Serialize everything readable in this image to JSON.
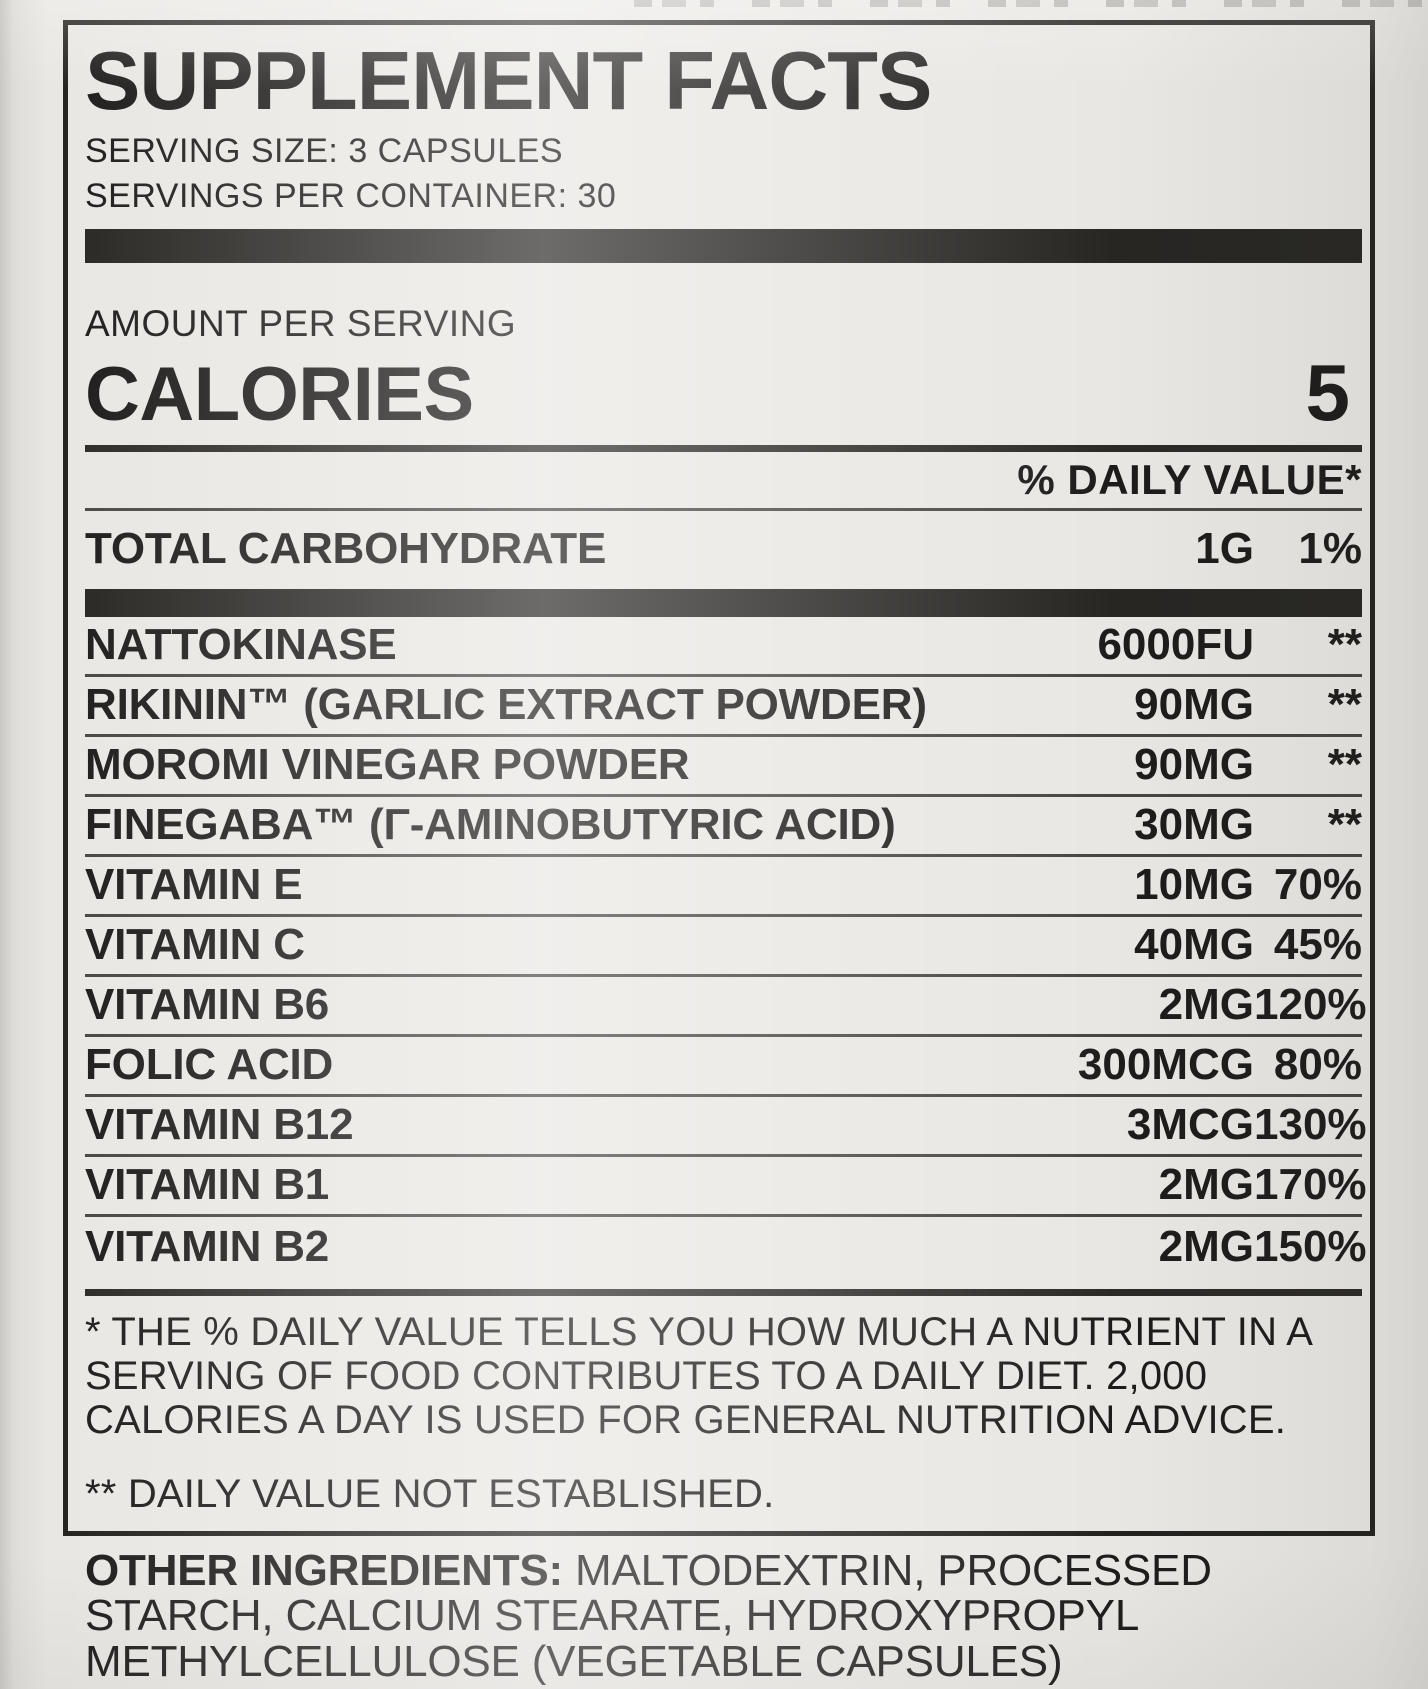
{
  "colors": {
    "ink": "#1d1c1a",
    "bar": "#272623",
    "background": "#e9e7e3"
  },
  "panel": {
    "title": "SUPPLEMENT FACTS",
    "serving_size": "SERVING SIZE: 3 CAPSULES",
    "servings_per_container": "SERVINGS PER CONTAINER: 30",
    "amount_per_serving": "AMOUNT PER SERVING",
    "calories_label": "CALORIES",
    "calories_value": "5",
    "daily_value_header": "% DAILY VALUE*",
    "carb_row": {
      "name": "TOTAL CARBOHYDRATE",
      "amount": "1G",
      "dv": "1%"
    },
    "rows": [
      {
        "name": "NATTOKINASE",
        "amount": "6000FU",
        "dv": "**"
      },
      {
        "name": "RIKININ™ (GARLIC EXTRACT POWDER)",
        "amount": "90MG",
        "dv": "**"
      },
      {
        "name": "MOROMI VINEGAR POWDER",
        "amount": "90MG",
        "dv": "**"
      },
      {
        "name": "FINEGABA™ (Γ-AMINOBUTYRIC ACID)",
        "amount": "30MG",
        "dv": "**"
      },
      {
        "name": "VITAMIN E",
        "amount": "10MG",
        "dv": "70%"
      },
      {
        "name": "VITAMIN C",
        "amount": "40MG",
        "dv": "45%"
      },
      {
        "name": "VITAMIN B6",
        "amount": "2MG",
        "dv": "120%"
      },
      {
        "name": "FOLIC ACID",
        "amount": "300MCG",
        "dv": "80%"
      },
      {
        "name": "VITAMIN B12",
        "amount": "3MCG",
        "dv": "130%"
      },
      {
        "name": "VITAMIN B1",
        "amount": "2MG",
        "dv": "170%"
      },
      {
        "name": "VITAMIN B2",
        "amount": "2MG",
        "dv": "150%"
      }
    ],
    "footnote_daily_value": "* THE % DAILY VALUE TELLS YOU HOW MUCH A NUTRIENT IN A SERVING OF FOOD CONTRIBUTES TO A DAILY DIET. 2,000 CALORIES A DAY IS USED FOR GENERAL NUTRITION ADVICE.",
    "footnote_not_established": "** DAILY VALUE NOT ESTABLISHED."
  },
  "other_ingredients": {
    "label": "OTHER INGREDIENTS:",
    "text": " MALTODEXTRIN, PROCESSED STARCH, CALCIUM STEARATE, HYDROXYPROPYL METHYLCELLULOSE (VEGETABLE CAPSULES)"
  }
}
